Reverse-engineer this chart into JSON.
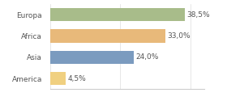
{
  "categories": [
    "Europa",
    "Africa",
    "Asia",
    "America"
  ],
  "values": [
    38.5,
    33.0,
    24.0,
    4.5
  ],
  "labels": [
    "38,5%",
    "33,0%",
    "24,0%",
    "4,5%"
  ],
  "bar_colors": [
    "#a8bc8a",
    "#e8b97a",
    "#7b9bbf",
    "#f0d080"
  ],
  "xlim": [
    0,
    44
  ],
  "background_color": "#ffffff",
  "label_fontsize": 6.5,
  "tick_fontsize": 6.5
}
